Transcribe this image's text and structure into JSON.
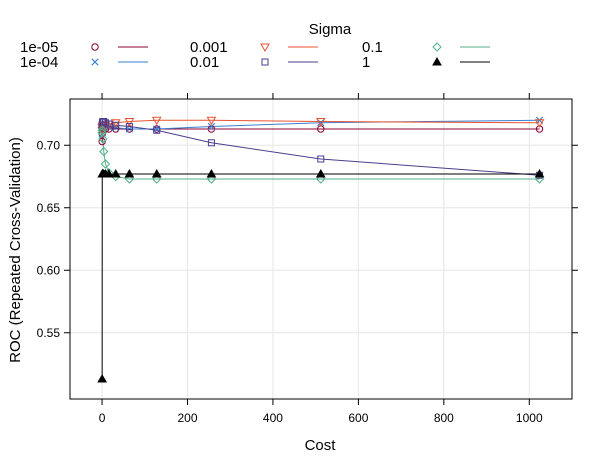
{
  "chart_data": {
    "type": "line",
    "title": "",
    "xlabel": "Cost",
    "ylabel": "ROC (Repeated Cross-Validation)",
    "xlim": [
      -75,
      1100
    ],
    "ylim": [
      0.497,
      0.737
    ],
    "x_ticks": [
      0,
      200,
      400,
      600,
      800,
      1000
    ],
    "y_ticks": [
      0.55,
      0.6,
      0.65,
      0.7
    ],
    "x_tick_labels": [
      "0",
      "200",
      "400",
      "600",
      "800",
      "1000"
    ],
    "y_tick_labels": [
      "0.55",
      "0.60",
      "0.65",
      "0.70"
    ],
    "grid": true,
    "legend_title": "Sigma",
    "legend_position": "top",
    "x": [
      0.25,
      0.5,
      1,
      2,
      4,
      8,
      16,
      32,
      64,
      128,
      256,
      512,
      1024
    ],
    "series": [
      {
        "name": "1e-05",
        "color": "#8b0032",
        "marker": "circle",
        "values": [
          0.703,
          0.709,
          0.712,
          0.713,
          0.713,
          0.713,
          0.713,
          0.713,
          0.713,
          0.713,
          0.713,
          0.713,
          0.713
        ]
      },
      {
        "name": "1e-04",
        "color": "#3a7fd0",
        "marker": "cross",
        "values": [
          0.709,
          0.713,
          0.715,
          0.716,
          0.716,
          0.716,
          0.715,
          0.714,
          0.713,
          0.713,
          0.715,
          0.718,
          0.72
        ]
      },
      {
        "name": "0.001",
        "color": "#e8522e",
        "marker": "triangle-down",
        "values": [
          0.712,
          0.714,
          0.715,
          0.716,
          0.716,
          0.716,
          0.717,
          0.718,
          0.719,
          0.72,
          0.72,
          0.719,
          0.718
        ]
      },
      {
        "name": "0.01",
        "color": "#4b3d8f",
        "marker": "square",
        "values": [
          0.714,
          0.716,
          0.718,
          0.719,
          0.719,
          0.718,
          0.717,
          0.716,
          0.715,
          0.712,
          0.702,
          0.689,
          0.676
        ]
      },
      {
        "name": "0.1",
        "color": "#52b088",
        "marker": "diamond",
        "values": [
          0.71,
          0.712,
          0.712,
          0.705,
          0.695,
          0.685,
          0.678,
          0.675,
          0.673,
          0.673,
          0.673,
          0.673,
          0.673
        ]
      },
      {
        "name": "1",
        "color": "#000000",
        "marker": "triangle-up-filled",
        "values": [
          0.513,
          0.677,
          0.677,
          0.677,
          0.677,
          0.677,
          0.677,
          0.677,
          0.677,
          0.677,
          0.677,
          0.677,
          0.677
        ]
      }
    ]
  }
}
